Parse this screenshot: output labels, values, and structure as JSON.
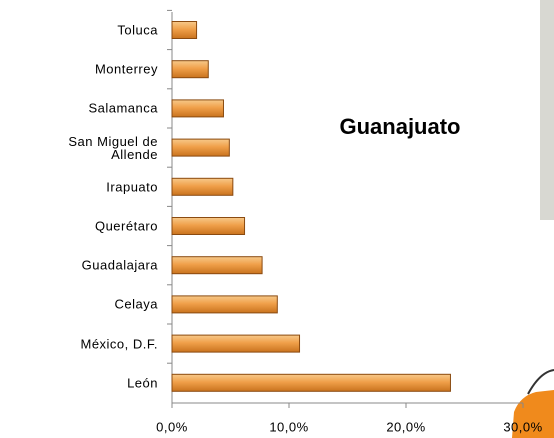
{
  "chart_data": {
    "type": "barh",
    "annotation": "Guanajuato",
    "categories": [
      "Toluca",
      "Monterrey",
      "Salamanca",
      "San Miguel de Allende",
      "Irapuato",
      "Querétaro",
      "Guadalajara",
      "Celaya",
      "México, D.F.",
      "León"
    ],
    "values": [
      2.1,
      3.1,
      4.4,
      4.9,
      5.2,
      6.2,
      7.7,
      9.0,
      10.9,
      23.8
    ],
    "color": "#f0a04a",
    "xlim": [
      0,
      30
    ],
    "xticks": [
      {
        "value": 0,
        "label": "0,0%"
      },
      {
        "value": 10,
        "label": "10,0%"
      },
      {
        "value": 20,
        "label": "20,0%"
      },
      {
        "value": 30,
        "label": "30,0%"
      }
    ]
  }
}
